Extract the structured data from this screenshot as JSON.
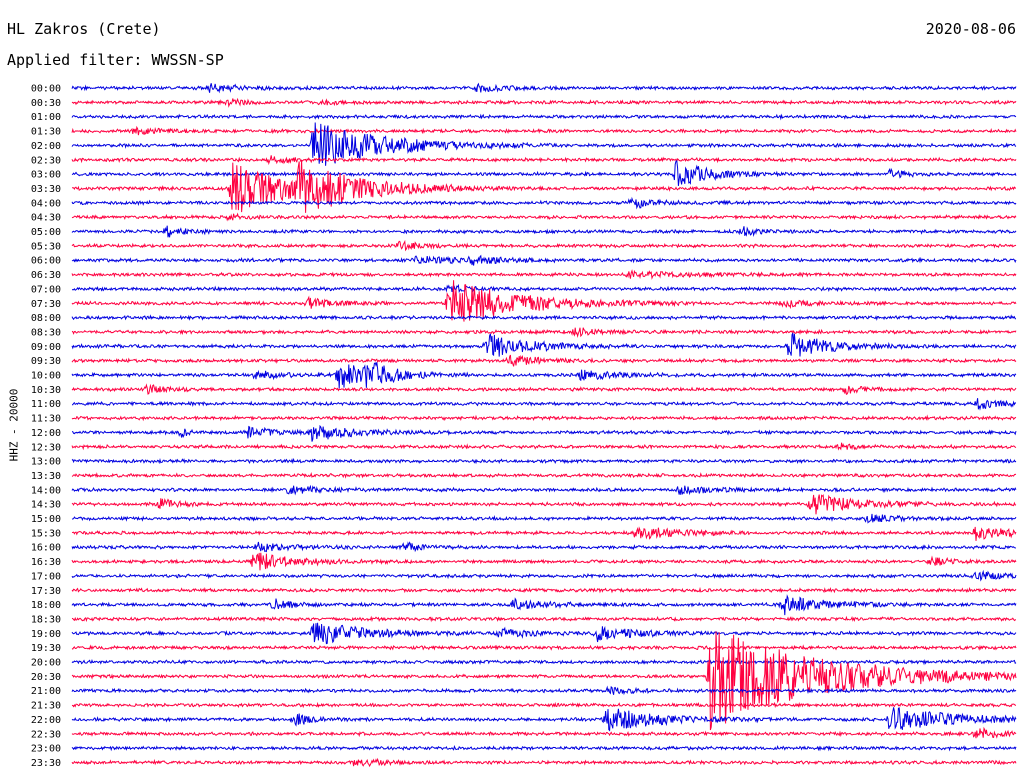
{
  "header": {
    "station": "HL Zakros (Crete)",
    "date": "2020-08-06",
    "filter": "Applied filter: WWSSN-SP",
    "channel": "HHZ - 20000"
  },
  "colors": {
    "even": "#0000e0",
    "odd": "#ff0040"
  },
  "chart_data": {
    "type": "line",
    "title": "HL Zakros (Crete)",
    "ylabel": "HHZ - 20000",
    "rows": [
      "00:00",
      "00:30",
      "01:00",
      "01:30",
      "02:00",
      "02:30",
      "03:00",
      "03:30",
      "04:00",
      "04:30",
      "05:00",
      "05:30",
      "06:00",
      "06:30",
      "07:00",
      "07:30",
      "08:00",
      "08:30",
      "09:00",
      "09:30",
      "10:00",
      "10:30",
      "11:00",
      "11:30",
      "12:00",
      "12:30",
      "13:00",
      "13:30",
      "14:00",
      "14:30",
      "15:00",
      "15:30",
      "16:00",
      "16:30",
      "17:00",
      "17:30",
      "18:00",
      "18:30",
      "19:00",
      "19:30",
      "20:00",
      "20:30",
      "21:00",
      "21:30",
      "22:00",
      "22:30",
      "23:00",
      "23:30"
    ],
    "row_minutes": 30,
    "events": [
      {
        "row": 0,
        "minute": 4.4,
        "amp": 0.4,
        "dur": 1.0
      },
      {
        "row": 0,
        "minute": 12.9,
        "amp": 0.3,
        "dur": 0.8
      },
      {
        "row": 1,
        "minute": 5.0,
        "amp": 0.3,
        "dur": 0.5
      },
      {
        "row": 1,
        "minute": 7.9,
        "amp": 0.25,
        "dur": 0.5
      },
      {
        "row": 3,
        "minute": 2.0,
        "amp": 0.3,
        "dur": 0.8
      },
      {
        "row": 4,
        "minute": 7.7,
        "amp": 2.4,
        "dur": 2.0
      },
      {
        "row": 5,
        "minute": 6.3,
        "amp": 0.4,
        "dur": 0.6
      },
      {
        "row": 6,
        "minute": 19.2,
        "amp": 1.3,
        "dur": 1.0
      },
      {
        "row": 6,
        "minute": 26.0,
        "amp": 0.4,
        "dur": 0.5
      },
      {
        "row": 7,
        "minute": 5.1,
        "amp": 2.6,
        "dur": 1.8
      },
      {
        "row": 7,
        "minute": 7.2,
        "amp": 2.2,
        "dur": 1.8
      },
      {
        "row": 8,
        "minute": 17.8,
        "amp": 0.5,
        "dur": 0.8
      },
      {
        "row": 9,
        "minute": 4.9,
        "amp": 0.3,
        "dur": 0.6
      },
      {
        "row": 10,
        "minute": 3.0,
        "amp": 0.5,
        "dur": 0.6
      },
      {
        "row": 10,
        "minute": 21.3,
        "amp": 0.4,
        "dur": 0.5
      },
      {
        "row": 11,
        "minute": 10.4,
        "amp": 0.4,
        "dur": 0.6
      },
      {
        "row": 12,
        "minute": 10.9,
        "amp": 0.3,
        "dur": 2.0
      },
      {
        "row": 12,
        "minute": 12.7,
        "amp": 0.3,
        "dur": 1.0
      },
      {
        "row": 13,
        "minute": 17.7,
        "amp": 0.3,
        "dur": 1.8
      },
      {
        "row": 14,
        "minute": 12.0,
        "amp": 0.3,
        "dur": 0.6
      },
      {
        "row": 15,
        "minute": 7.5,
        "amp": 0.5,
        "dur": 0.8
      },
      {
        "row": 15,
        "minute": 12.0,
        "amp": 2.5,
        "dur": 2.0
      },
      {
        "row": 15,
        "minute": 22.6,
        "amp": 0.4,
        "dur": 0.8
      },
      {
        "row": 17,
        "minute": 16.0,
        "amp": 0.5,
        "dur": 0.5
      },
      {
        "row": 18,
        "minute": 13.2,
        "amp": 1.3,
        "dur": 1.2
      },
      {
        "row": 18,
        "minute": 22.8,
        "amp": 1.3,
        "dur": 1.2
      },
      {
        "row": 19,
        "minute": 13.9,
        "amp": 0.5,
        "dur": 1.0
      },
      {
        "row": 20,
        "minute": 5.8,
        "amp": 0.4,
        "dur": 0.8
      },
      {
        "row": 20,
        "minute": 8.5,
        "amp": 1.3,
        "dur": 1.0
      },
      {
        "row": 20,
        "minute": 9.4,
        "amp": 1.1,
        "dur": 0.8
      },
      {
        "row": 20,
        "minute": 16.2,
        "amp": 0.5,
        "dur": 1.0
      },
      {
        "row": 21,
        "minute": 2.4,
        "amp": 0.4,
        "dur": 0.6
      },
      {
        "row": 21,
        "minute": 24.6,
        "amp": 0.4,
        "dur": 0.6
      },
      {
        "row": 22,
        "minute": 28.8,
        "amp": 0.5,
        "dur": 0.8
      },
      {
        "row": 24,
        "minute": 3.5,
        "amp": 0.5,
        "dur": 0.2
      },
      {
        "row": 24,
        "minute": 5.6,
        "amp": 0.5,
        "dur": 0.8
      },
      {
        "row": 24,
        "minute": 7.6,
        "amp": 0.8,
        "dur": 1.2
      },
      {
        "row": 25,
        "minute": 24.4,
        "amp": 0.3,
        "dur": 0.5
      },
      {
        "row": 28,
        "minute": 6.9,
        "amp": 0.4,
        "dur": 1.0
      },
      {
        "row": 28,
        "minute": 19.3,
        "amp": 0.4,
        "dur": 1.0
      },
      {
        "row": 29,
        "minute": 2.8,
        "amp": 0.5,
        "dur": 0.5
      },
      {
        "row": 29,
        "minute": 23.5,
        "amp": 1.0,
        "dur": 1.5
      },
      {
        "row": 30,
        "minute": 25.3,
        "amp": 0.4,
        "dur": 0.8
      },
      {
        "row": 31,
        "minute": 17.9,
        "amp": 0.7,
        "dur": 1.2
      },
      {
        "row": 31,
        "minute": 28.7,
        "amp": 0.7,
        "dur": 1.0
      },
      {
        "row": 32,
        "minute": 5.9,
        "amp": 0.4,
        "dur": 1.0
      },
      {
        "row": 32,
        "minute": 10.6,
        "amp": 0.4,
        "dur": 0.5
      },
      {
        "row": 33,
        "minute": 5.8,
        "amp": 0.9,
        "dur": 1.2
      },
      {
        "row": 33,
        "minute": 27.3,
        "amp": 0.5,
        "dur": 0.5
      },
      {
        "row": 34,
        "minute": 28.7,
        "amp": 0.4,
        "dur": 0.8
      },
      {
        "row": 36,
        "minute": 6.4,
        "amp": 0.5,
        "dur": 0.6
      },
      {
        "row": 36,
        "minute": 14.0,
        "amp": 0.5,
        "dur": 1.0
      },
      {
        "row": 36,
        "minute": 22.6,
        "amp": 1.0,
        "dur": 1.2
      },
      {
        "row": 38,
        "minute": 7.7,
        "amp": 1.2,
        "dur": 1.5
      },
      {
        "row": 38,
        "minute": 13.6,
        "amp": 0.5,
        "dur": 0.8
      },
      {
        "row": 38,
        "minute": 16.7,
        "amp": 0.7,
        "dur": 1.2
      },
      {
        "row": 41,
        "minute": 20.3,
        "amp": 5.8,
        "dur": 3.0
      },
      {
        "row": 42,
        "minute": 17.0,
        "amp": 0.4,
        "dur": 0.6
      },
      {
        "row": 44,
        "minute": 7.1,
        "amp": 0.6,
        "dur": 0.5
      },
      {
        "row": 44,
        "minute": 17.0,
        "amp": 1.2,
        "dur": 1.5
      },
      {
        "row": 44,
        "minute": 26.0,
        "amp": 1.2,
        "dur": 2.0
      },
      {
        "row": 45,
        "minute": 28.7,
        "amp": 0.5,
        "dur": 1.0
      },
      {
        "row": 47,
        "minute": 9.0,
        "amp": 0.4,
        "dur": 0.8
      }
    ]
  }
}
